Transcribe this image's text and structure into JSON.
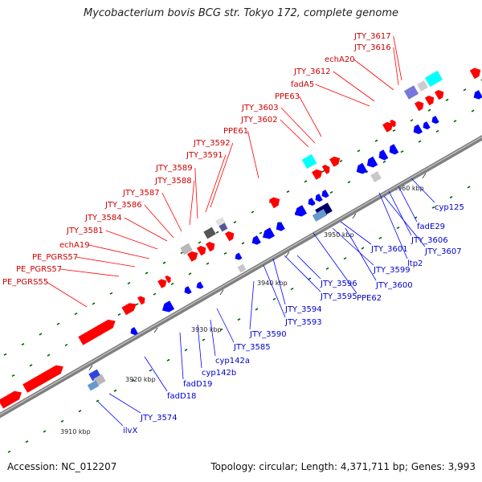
{
  "title": "Mycobacterium bovis BCG str. Tokyo 172, complete genome",
  "footer": {
    "accession": "Accession: NC_012207",
    "topology": "Topology: circular; Length: 4,371,711 bp; Genes: 3,993"
  },
  "colors": {
    "forward_gene": "#ff0000",
    "reverse_gene": "#0000ff",
    "forward_label": "#cc0000",
    "reverse_label": "#0000cc",
    "backbone": "#7f7f7f",
    "gc_dots": "#006400"
  },
  "ticks": [
    {
      "kbp": 3910,
      "label": "3910 kbp"
    },
    {
      "kbp": 3920,
      "label": "3920 kbp"
    },
    {
      "kbp": 3930,
      "label": "3930 kbp"
    },
    {
      "kbp": 3940,
      "label": "3940 kbp"
    },
    {
      "kbp": 3950,
      "label": "3950 kbp"
    },
    {
      "kbp": 3960,
      "label": "3960 kbp"
    }
  ],
  "forward_labels": [
    "JTY_3617",
    "JTY_3616",
    "echA20",
    "JTY_3612",
    "fadA5",
    "PPE63",
    "JTY_3603",
    "JTY_3602",
    "PPE61",
    "JTY_3592",
    "JTY_3591",
    "JTY_3589",
    "JTY_3588",
    "JTY_3587",
    "JTY_3586",
    "JTY_3584",
    "JTY_3581",
    "echA19",
    "PE_PGRS57",
    "PE_PGRS57",
    "PE_PGRS55"
  ],
  "reverse_labels": [
    "cyp125",
    "fadE29",
    "JTY_3606",
    "JTY_3607",
    "JTY_3601",
    "ltp2",
    "JTY_3599",
    "JTY_3600",
    "JTY_3596",
    "PPE62",
    "JTY_3595",
    "JTY_3594",
    "JTY_3593",
    "JTY_3590",
    "JTY_3585",
    "cyp142a",
    "cyp142b",
    "fadD19",
    "fadD18",
    "JTY_3574",
    "ilvX"
  ]
}
